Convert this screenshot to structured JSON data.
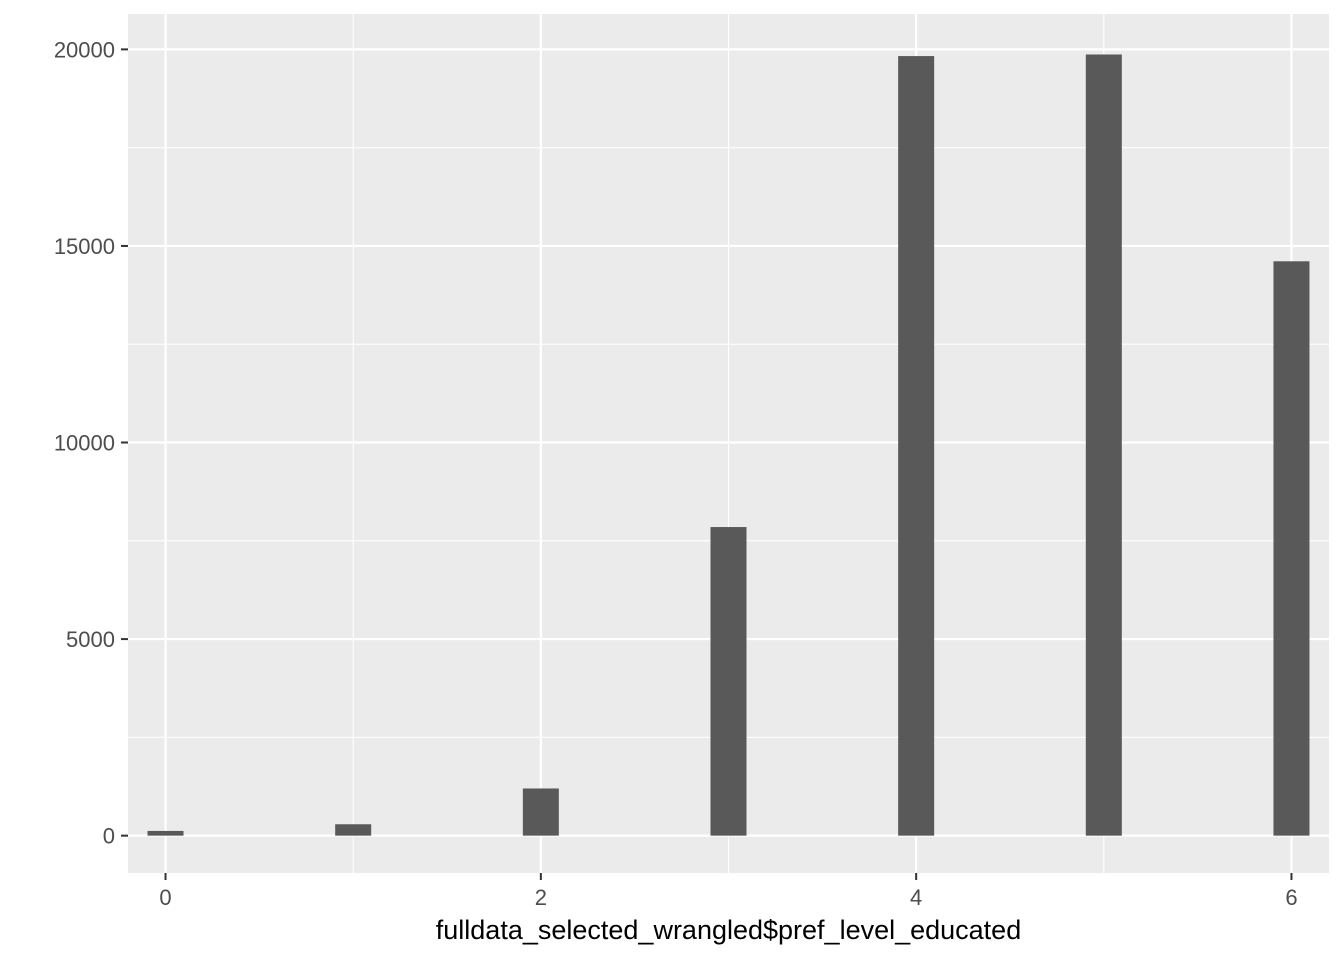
{
  "chart_data": {
    "type": "bar",
    "title": "",
    "xlabel": "fulldata_selected_wrangled$pref_level_educated",
    "ylabel": "",
    "x": [
      0,
      1,
      2,
      3,
      4,
      5,
      6
    ],
    "values": [
      120,
      290,
      1200,
      7850,
      19830,
      19870,
      14610
    ],
    "xlim": [
      -0.2,
      6.2
    ],
    "ylim": [
      -950,
      20900
    ],
    "x_ticks": [
      0,
      2,
      4,
      6
    ],
    "x_tick_labels": [
      "0",
      "2",
      "4",
      "6"
    ],
    "y_ticks": [
      0,
      5000,
      10000,
      15000,
      20000
    ],
    "y_tick_labels": [
      "0",
      "5000",
      "10000",
      "15000",
      "20000"
    ],
    "grid": true,
    "legend": "none",
    "colors": {
      "panel_background": "#ebebeb",
      "grid": "#ffffff",
      "bar_fill": "#595959",
      "tick_text": "#4d4d4d",
      "title_text": "#000000"
    }
  }
}
